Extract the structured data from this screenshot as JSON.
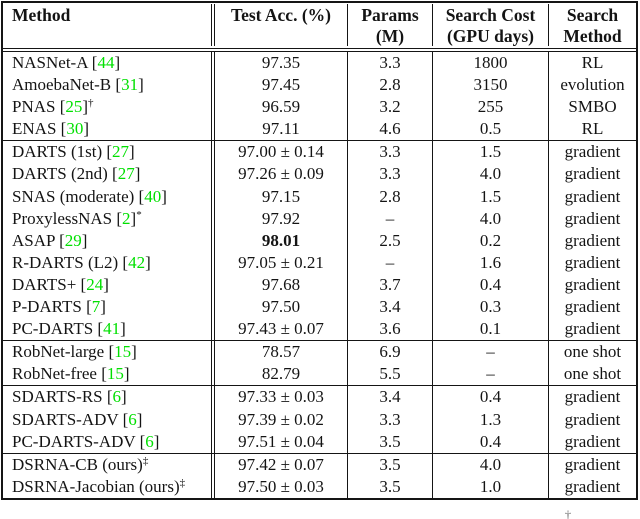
{
  "colors": {
    "citation_green": "#00e000",
    "border": "#151515",
    "text": "#141414",
    "background": "#ffffff"
  },
  "footnote_marker": "†",
  "table": {
    "columns": [
      {
        "line1": "Method",
        "line2": ""
      },
      {
        "line1": "Test Acc. (%)",
        "line2": ""
      },
      {
        "line1": "Params",
        "line2": "(M)"
      },
      {
        "line1": "Search Cost",
        "line2": "(GPU days)"
      },
      {
        "line1": "Search",
        "line2": "Method"
      }
    ],
    "rows": [
      {
        "m": {
          "pre": "NASNet-A [",
          "cite": "44",
          "post": "]",
          "sup": ""
        },
        "acc": "97.35",
        "params": "3.3",
        "cost": "1800",
        "search": "RL",
        "acc_bold": false
      },
      {
        "m": {
          "pre": "AmoebaNet-B [",
          "cite": "31",
          "post": "]",
          "sup": ""
        },
        "acc": "97.45",
        "params": "2.8",
        "cost": "3150",
        "search": "evolution",
        "acc_bold": false
      },
      {
        "m": {
          "pre": "PNAS [",
          "cite": "25",
          "post": "]",
          "sup": "†"
        },
        "acc": "96.59",
        "params": "3.2",
        "cost": "255",
        "search": "SMBO",
        "acc_bold": false
      },
      {
        "m": {
          "pre": "ENAS [",
          "cite": "30",
          "post": "]",
          "sup": ""
        },
        "acc": "97.11",
        "params": "4.6",
        "cost": "0.5",
        "search": "RL",
        "acc_bold": false
      },
      {
        "m": {
          "pre": "DARTS (1st) [",
          "cite": "27",
          "post": "]",
          "sup": ""
        },
        "acc": "97.00 ± 0.14",
        "params": "3.3",
        "cost": "1.5",
        "search": "gradient",
        "acc_bold": false
      },
      {
        "m": {
          "pre": "DARTS (2nd) [",
          "cite": "27",
          "post": "]",
          "sup": ""
        },
        "acc": "97.26 ± 0.09",
        "params": "3.3",
        "cost": "4.0",
        "search": "gradient",
        "acc_bold": false
      },
      {
        "m": {
          "pre": "SNAS (moderate) [",
          "cite": "40",
          "post": "]",
          "sup": ""
        },
        "acc": "97.15",
        "params": "2.8",
        "cost": "1.5",
        "search": "gradient",
        "acc_bold": false
      },
      {
        "m": {
          "pre": "ProxylessNAS [",
          "cite": "2",
          "post": "]",
          "sup": "*"
        },
        "acc": "97.92",
        "params": "–",
        "cost": "4.0",
        "search": "gradient",
        "acc_bold": false
      },
      {
        "m": {
          "pre": "ASAP [",
          "cite": "29",
          "post": "]",
          "sup": ""
        },
        "acc": "98.01",
        "params": "2.5",
        "cost": "0.2",
        "search": "gradient",
        "acc_bold": true
      },
      {
        "m": {
          "pre": "R-DARTS (L2) [",
          "cite": "42",
          "post": "]",
          "sup": ""
        },
        "acc": "97.05 ± 0.21",
        "params": "–",
        "cost": "1.6",
        "search": "gradient",
        "acc_bold": false
      },
      {
        "m": {
          "pre": "DARTS+ [",
          "cite": "24",
          "post": "]",
          "sup": ""
        },
        "acc": "97.68",
        "params": "3.7",
        "cost": "0.4",
        "search": "gradient",
        "acc_bold": false
      },
      {
        "m": {
          "pre": "P-DARTS [",
          "cite": "7",
          "post": "]",
          "sup": ""
        },
        "acc": "97.50",
        "params": "3.4",
        "cost": "0.3",
        "search": "gradient",
        "acc_bold": false
      },
      {
        "m": {
          "pre": "PC-DARTS [",
          "cite": "41",
          "post": "]",
          "sup": ""
        },
        "acc": "97.43 ± 0.07",
        "params": "3.6",
        "cost": "0.1",
        "search": "gradient",
        "acc_bold": false
      },
      {
        "m": {
          "pre": "RobNet-large [",
          "cite": "15",
          "post": "]",
          "sup": ""
        },
        "acc": "78.57",
        "params": "6.9",
        "cost": "–",
        "search": "one shot",
        "acc_bold": false
      },
      {
        "m": {
          "pre": "RobNet-free [",
          "cite": "15",
          "post": "]",
          "sup": ""
        },
        "acc": "82.79",
        "params": "5.5",
        "cost": "–",
        "search": "one shot",
        "acc_bold": false
      },
      {
        "m": {
          "pre": "SDARTS-RS [",
          "cite": "6",
          "post": "]",
          "sup": ""
        },
        "acc": "97.33 ± 0.03",
        "params": "3.4",
        "cost": "0.4",
        "search": "gradient",
        "acc_bold": false
      },
      {
        "m": {
          "pre": "SDARTS-ADV [",
          "cite": "6",
          "post": "]",
          "sup": ""
        },
        "acc": "97.39 ± 0.02",
        "params": "3.3",
        "cost": "1.3",
        "search": "gradient",
        "acc_bold": false
      },
      {
        "m": {
          "pre": "PC-DARTS-ADV [",
          "cite": "6",
          "post": "]",
          "sup": ""
        },
        "acc": "97.51 ± 0.04",
        "params": "3.5",
        "cost": "0.4",
        "search": "gradient",
        "acc_bold": false
      },
      {
        "m": {
          "pre": "DSRNA-CB (ours)",
          "cite": "",
          "post": "",
          "sup": "‡"
        },
        "acc": "97.42 ± 0.07",
        "params": "3.5",
        "cost": "4.0",
        "search": "gradient",
        "acc_bold": false
      },
      {
        "m": {
          "pre": "DSRNA-Jacobian (ours)",
          "cite": "",
          "post": "",
          "sup": "‡"
        },
        "acc": "97.50 ± 0.03",
        "params": "3.5",
        "cost": "1.0",
        "search": "gradient",
        "acc_bold": false
      }
    ]
  }
}
